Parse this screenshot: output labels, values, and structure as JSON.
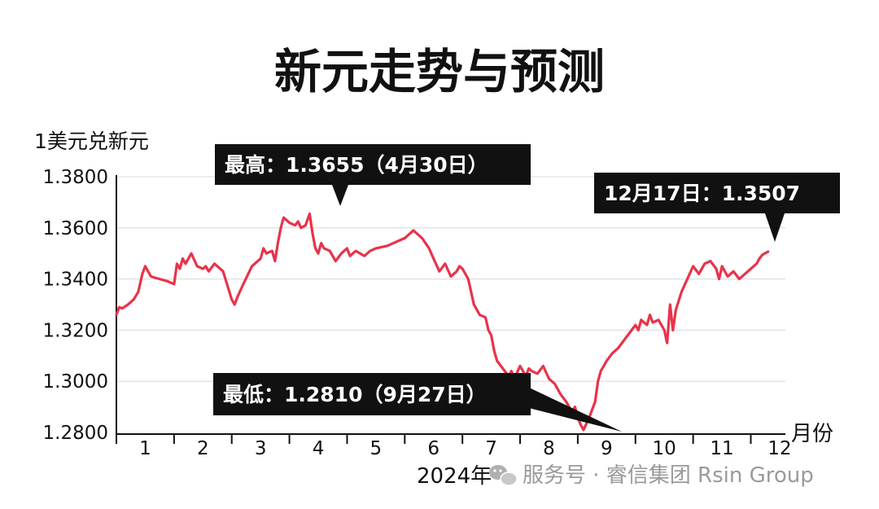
{
  "chart_data": {
    "type": "line",
    "title": "新元走势与预测",
    "ylabel": "1美元兑新元",
    "xlabel": "月份",
    "year_label": "2024年",
    "ylim": [
      1.28,
      1.38
    ],
    "yticks": [
      "1.3800",
      "1.3600",
      "1.3400",
      "1.3200",
      "1.3000",
      "1.2800"
    ],
    "ytick_values": [
      1.38,
      1.36,
      1.34,
      1.32,
      1.3,
      1.28
    ],
    "xticks": [
      "1",
      "2",
      "3",
      "4",
      "5",
      "6",
      "7",
      "8",
      "9",
      "10",
      "11",
      "12"
    ],
    "xlim": [
      1.0,
      12.55
    ],
    "grid": true,
    "line_color": "#e8334a",
    "series": [
      {
        "x": [
          1.0,
          1.05,
          1.1,
          1.2,
          1.3,
          1.38,
          1.45,
          1.5,
          1.6,
          1.75,
          1.9,
          2.0,
          2.05,
          2.1,
          2.15,
          2.2,
          2.3,
          2.4,
          2.5,
          2.55,
          2.6,
          2.7,
          2.85,
          3.0,
          3.05,
          3.1,
          3.2,
          3.35,
          3.5,
          3.55,
          3.6,
          3.7,
          3.75,
          3.8,
          3.85,
          3.9,
          4.0,
          4.1,
          4.15,
          4.2,
          4.28,
          4.35,
          4.4,
          4.45,
          4.5,
          4.55,
          4.6,
          4.7,
          4.8,
          4.9,
          5.0,
          5.05,
          5.15,
          5.3,
          5.4,
          5.5,
          5.7,
          5.9,
          6.0,
          6.15,
          6.3,
          6.42,
          6.5,
          6.6,
          6.7,
          6.8,
          6.9,
          6.95,
          7.0,
          7.1,
          7.2,
          7.3,
          7.4,
          7.45,
          7.5,
          7.55,
          7.6,
          7.7,
          7.8,
          7.85,
          7.9,
          8.0,
          8.1,
          8.15,
          8.2,
          8.3,
          8.4,
          8.5,
          8.6,
          8.7,
          8.8,
          8.9,
          8.95,
          9.0,
          9.05,
          9.1,
          9.2,
          9.3,
          9.35,
          9.4,
          9.45,
          9.5,
          9.6,
          9.7,
          9.8,
          9.9,
          10.0,
          10.05,
          10.1,
          10.2,
          10.25,
          10.3,
          10.4,
          10.5,
          10.55,
          10.6,
          10.65,
          10.7,
          10.8,
          10.9,
          11.0,
          11.1,
          11.2,
          11.3,
          11.4,
          11.45,
          11.5,
          11.6,
          11.7,
          11.8,
          11.9,
          12.0,
          12.1,
          12.15,
          12.2,
          12.3
        ],
        "values": [
          1.326,
          1.329,
          1.3285,
          1.33,
          1.332,
          1.335,
          1.342,
          1.345,
          1.341,
          1.34,
          1.339,
          1.338,
          1.346,
          1.344,
          1.348,
          1.346,
          1.35,
          1.345,
          1.344,
          1.345,
          1.343,
          1.346,
          1.343,
          1.332,
          1.33,
          1.333,
          1.338,
          1.345,
          1.348,
          1.352,
          1.35,
          1.351,
          1.347,
          1.354,
          1.36,
          1.364,
          1.362,
          1.361,
          1.3625,
          1.36,
          1.361,
          1.3655,
          1.358,
          1.352,
          1.35,
          1.354,
          1.352,
          1.351,
          1.347,
          1.35,
          1.352,
          1.349,
          1.351,
          1.349,
          1.351,
          1.352,
          1.353,
          1.355,
          1.356,
          1.359,
          1.356,
          1.352,
          1.348,
          1.343,
          1.346,
          1.341,
          1.343,
          1.345,
          1.344,
          1.34,
          1.33,
          1.326,
          1.325,
          1.32,
          1.318,
          1.312,
          1.308,
          1.305,
          1.302,
          1.304,
          1.301,
          1.306,
          1.302,
          1.305,
          1.304,
          1.303,
          1.306,
          1.301,
          1.299,
          1.295,
          1.292,
          1.288,
          1.29,
          1.286,
          1.283,
          1.281,
          1.286,
          1.292,
          1.3,
          1.304,
          1.306,
          1.308,
          1.311,
          1.313,
          1.316,
          1.319,
          1.322,
          1.32,
          1.324,
          1.322,
          1.326,
          1.323,
          1.324,
          1.32,
          1.315,
          1.33,
          1.32,
          1.328,
          1.335,
          1.34,
          1.345,
          1.342,
          1.346,
          1.347,
          1.344,
          1.34,
          1.345,
          1.341,
          1.343,
          1.34,
          1.342,
          1.344,
          1.346,
          1.348,
          1.3495,
          1.3507
        ]
      }
    ],
    "annotations": [
      {
        "label": "最高：1.3655（4月30日）",
        "x": 4.35,
        "y": 1.3655
      },
      {
        "label": "12月17日：1.3507",
        "x": 12.3,
        "y": 1.3507
      },
      {
        "label": "最低：1.2810（9月27日）",
        "x": 9.1,
        "y": 1.281
      }
    ]
  },
  "watermark": {
    "icon": "wechat-icon",
    "text": "服务号 · 睿信集团 Rsin Group"
  }
}
